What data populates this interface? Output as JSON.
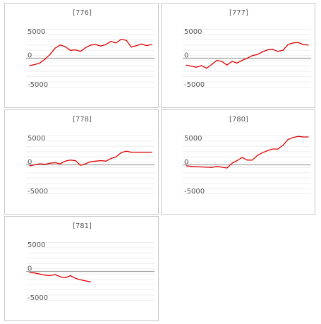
{
  "colors": {
    "line": "#e00000",
    "zero": "#a0a0a0",
    "grid": "#eeeeee",
    "text": "#595959",
    "border": "#c8c8c8"
  },
  "chart_data": [
    {
      "type": "line",
      "title": "[776]",
      "ylim": [
        -6500,
        6500
      ],
      "yticks": [
        5000,
        0,
        -5000
      ],
      "grid": true,
      "series": [
        {
          "values": [
            -1400,
            -1200,
            -900,
            -200,
            700,
            1900,
            2500,
            2200,
            1500,
            1600,
            1300,
            2000,
            2500,
            2600,
            2300,
            2600,
            3200,
            2900,
            3600,
            3400,
            2100,
            2400,
            2700,
            2400,
            2600
          ]
        }
      ]
    },
    {
      "type": "line",
      "title": "[777]",
      "ylim": [
        -6500,
        6500
      ],
      "yticks": [
        5000,
        0,
        -5000
      ],
      "grid": true,
      "series": [
        {
          "values": [
            -1300,
            -1500,
            -1700,
            -1400,
            -1900,
            -1200,
            -400,
            -600,
            -1300,
            -600,
            -900,
            -400,
            0,
            500,
            700,
            1200,
            1600,
            1700,
            1300,
            1500,
            2600,
            2900,
            3000,
            2600,
            2500
          ]
        }
      ]
    },
    {
      "type": "line",
      "title": "[778]",
      "ylim": [
        -6500,
        6500
      ],
      "yticks": [
        5000,
        0,
        -5000
      ],
      "grid": true,
      "series": [
        {
          "values": [
            -200,
            0,
            200,
            100,
            300,
            400,
            200,
            700,
            900,
            800,
            -100,
            200,
            600,
            700,
            800,
            700,
            1200,
            1500,
            2300,
            2600,
            2400,
            2400,
            2400,
            2400,
            2400
          ]
        }
      ]
    },
    {
      "type": "line",
      "title": "[780]",
      "ylim": [
        -6500,
        6500
      ],
      "yticks": [
        5000,
        0,
        -5000
      ],
      "grid": true,
      "series": [
        {
          "values": [
            -200,
            -300,
            -350,
            -400,
            -450,
            -500,
            -300,
            -450,
            -600,
            300,
            800,
            1400,
            900,
            900,
            1800,
            2300,
            2700,
            3000,
            3000,
            3700,
            4800,
            5200,
            5400,
            5300,
            5300
          ]
        }
      ]
    },
    {
      "type": "line",
      "title": "[781]",
      "ylim": [
        -6500,
        6500
      ],
      "yticks": [
        5000,
        0,
        -5000
      ],
      "grid": true,
      "series": [
        {
          "values": [
            -200,
            -300,
            -500,
            -700,
            -800,
            -600,
            -1000,
            -1200,
            -800,
            -1300,
            -1600,
            -1800,
            -2000
          ]
        }
      ]
    }
  ]
}
